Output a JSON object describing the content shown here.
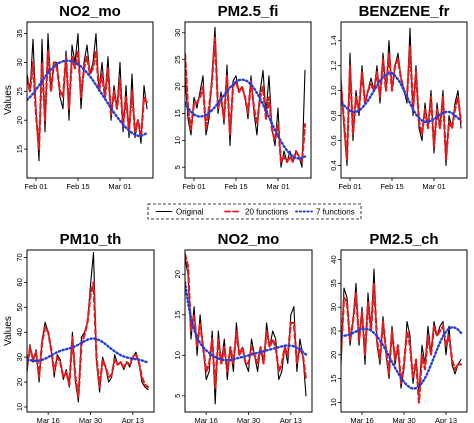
{
  "chart_data": [
    {
      "type": "line",
      "title": "NO2_mo",
      "ylabel": "Values",
      "xlabel": "",
      "ylim": [
        10,
        37
      ],
      "yticks": [
        15,
        20,
        25,
        30,
        35
      ],
      "xlim": [
        0,
        42
      ],
      "xticks": [
        {
          "pos": 3,
          "label": "Feb 01"
        },
        {
          "pos": 17,
          "label": "Feb 15"
        },
        {
          "pos": 31,
          "label": "Mar 01"
        }
      ],
      "series": [
        {
          "name": "Original",
          "style": "solid",
          "color": "#000000",
          "values": [
            28,
            25,
            34,
            22,
            13,
            34,
            18,
            35,
            25,
            30,
            30,
            24,
            22,
            32,
            20,
            33,
            30,
            35,
            22,
            30,
            33,
            28,
            30,
            35,
            25,
            30,
            24,
            31,
            20,
            26,
            22,
            30,
            18,
            26,
            17,
            28,
            17,
            20,
            16,
            26,
            22
          ]
        },
        {
          "name": "20 functions",
          "style": "dashed",
          "color": "#e41a1c",
          "values": [
            27,
            25,
            30,
            21,
            15,
            30,
            20,
            32,
            25,
            30,
            29,
            25,
            24,
            31,
            22,
            31,
            29,
            32,
            24,
            29,
            31,
            28,
            29,
            32,
            25,
            28,
            24,
            29,
            21,
            25,
            22,
            27,
            19,
            24,
            18,
            25,
            18,
            20,
            17,
            24,
            23
          ]
        },
        {
          "name": "7 functions",
          "style": "dotted",
          "color": "#1f3fdb",
          "values": [
            23.5,
            24,
            24.6,
            25.3,
            26,
            26.8,
            27.5,
            28.2,
            28.8,
            29.3,
            29.7,
            30,
            30.2,
            30.3,
            30.3,
            30.2,
            30,
            29.7,
            29.3,
            28.8,
            28.2,
            27.6,
            26.9,
            26.1,
            25.3,
            24.5,
            23.7,
            22.9,
            22.1,
            21.3,
            20.6,
            19.9,
            19.3,
            18.7,
            18.2,
            17.8,
            17.5,
            17.3,
            17.3,
            17.5,
            17.8
          ]
        }
      ]
    },
    {
      "type": "line",
      "title": "PM2.5_fi",
      "ylabel": "",
      "xlabel": "",
      "ylim": [
        3,
        32
      ],
      "yticks": [
        5,
        10,
        15,
        20,
        25,
        30
      ],
      "xlim": [
        0,
        42
      ],
      "xticks": [
        {
          "pos": 3,
          "label": "Feb 01"
        },
        {
          "pos": 17,
          "label": "Feb 15"
        },
        {
          "pos": 31,
          "label": "Mar 01"
        }
      ],
      "series": [
        {
          "name": "Original",
          "style": "solid",
          "color": "#000000",
          "values": [
            22,
            14,
            11,
            18,
            16,
            19,
            22,
            11,
            14,
            22,
            31,
            15,
            19,
            13,
            24,
            9,
            21,
            22,
            19,
            20,
            18,
            14,
            22,
            15,
            11,
            19,
            23,
            15,
            22,
            12,
            9,
            16,
            5,
            8,
            6,
            8,
            6,
            8,
            7,
            5,
            23
          ]
        },
        {
          "name": "20 functions",
          "style": "dashed",
          "color": "#e41a1c",
          "values": [
            26,
            16,
            12,
            17,
            17,
            18,
            20,
            12,
            16,
            21,
            29,
            16,
            18,
            14,
            22,
            11,
            20,
            21,
            19,
            20,
            18,
            15,
            21,
            16,
            13,
            18,
            20,
            14,
            18,
            12,
            10,
            13,
            6,
            7,
            6,
            7,
            6,
            8,
            7,
            6,
            13
          ]
        },
        {
          "name": "7 functions",
          "style": "dotted",
          "color": "#1f3fdb",
          "values": [
            17,
            16,
            15.3,
            14.8,
            14.5,
            14.4,
            14.5,
            14.7,
            15.1,
            15.6,
            16.2,
            16.9,
            17.6,
            18.4,
            19.1,
            19.8,
            20.4,
            20.9,
            21.2,
            21.3,
            21.2,
            20.9,
            20.4,
            19.7,
            18.8,
            17.8,
            16.7,
            15.5,
            14.3,
            13.1,
            11.9,
            10.8,
            9.8,
            8.9,
            8.1,
            7.5,
            7,
            6.7,
            6.6,
            6.7,
            7
          ]
        }
      ]
    },
    {
      "type": "line",
      "title": "BENZENE_fr",
      "ylabel": "",
      "xlabel": "",
      "ylim": [
        0.3,
        1.55
      ],
      "yticks": [
        0.4,
        0.6,
        0.8,
        1.0,
        1.2,
        1.4
      ],
      "xlim": [
        0,
        42
      ],
      "xticks": [
        {
          "pos": 3,
          "label": "Feb 01"
        },
        {
          "pos": 17,
          "label": "Feb 15"
        },
        {
          "pos": 31,
          "label": "Mar 01"
        }
      ],
      "series": [
        {
          "name": "Original",
          "style": "solid",
          "color": "#000000",
          "values": [
            1.1,
            0.7,
            0.4,
            1.3,
            0.6,
            1.0,
            0.8,
            1.2,
            0.9,
            1.0,
            1.1,
            1.0,
            1.2,
            0.9,
            1.3,
            1.0,
            1.4,
            1.0,
            1.2,
            1.3,
            1.1,
            1.0,
            0.9,
            1.5,
            0.8,
            1.2,
            0.7,
            0.6,
            0.9,
            0.7,
            1.0,
            0.5,
            0.9,
            0.7,
            1.0,
            0.4,
            0.8,
            0.7,
            0.9,
            1.0,
            0.7
          ]
        },
        {
          "name": "20 functions",
          "style": "dashed",
          "color": "#e41a1c",
          "values": [
            1.05,
            0.75,
            0.45,
            1.2,
            0.65,
            0.95,
            0.85,
            1.15,
            0.9,
            1.0,
            1.05,
            1.0,
            1.15,
            0.95,
            1.25,
            1.0,
            1.3,
            1.0,
            1.2,
            1.25,
            1.1,
            1.0,
            0.95,
            1.35,
            0.85,
            1.15,
            0.75,
            0.65,
            0.85,
            0.7,
            0.95,
            0.55,
            0.85,
            0.7,
            0.95,
            0.45,
            0.75,
            0.7,
            0.85,
            0.95,
            0.75
          ]
        },
        {
          "name": "7 functions",
          "style": "dotted",
          "color": "#1f3fdb",
          "values": [
            0.9,
            0.88,
            0.86,
            0.84,
            0.83,
            0.83,
            0.84,
            0.86,
            0.89,
            0.92,
            0.96,
            1.0,
            1.04,
            1.08,
            1.11,
            1.13,
            1.14,
            1.14,
            1.12,
            1.09,
            1.05,
            1.0,
            0.95,
            0.9,
            0.85,
            0.81,
            0.78,
            0.76,
            0.75,
            0.75,
            0.76,
            0.77,
            0.79,
            0.81,
            0.82,
            0.83,
            0.83,
            0.82,
            0.8,
            0.78,
            0.76
          ]
        }
      ]
    },
    {
      "type": "line",
      "title": "PM10_th",
      "ylabel": "Values",
      "xlabel": "",
      "ylim": [
        8,
        73
      ],
      "yticks": [
        10,
        20,
        30,
        40,
        50,
        60,
        70
      ],
      "xlim": [
        0,
        42
      ],
      "xticks": [
        {
          "pos": 7,
          "label": "Mar 16"
        },
        {
          "pos": 21,
          "label": "Mar 30"
        },
        {
          "pos": 35,
          "label": "Apr 13"
        }
      ],
      "series": [
        {
          "name": "Original",
          "style": "solid",
          "color": "#000000",
          "values": [
            24,
            35,
            28,
            33,
            20,
            37,
            44,
            40,
            33,
            22,
            31,
            29,
            21,
            25,
            18,
            40,
            20,
            12,
            38,
            40,
            44,
            59,
            72,
            28,
            16,
            30,
            26,
            20,
            22,
            31,
            27,
            28,
            25,
            28,
            26,
            30,
            32,
            28,
            20,
            18,
            17
          ]
        },
        {
          "name": "20 functions",
          "style": "dashed",
          "color": "#e41a1c",
          "values": [
            26,
            34,
            29,
            32,
            22,
            36,
            42,
            40,
            33,
            24,
            30,
            28,
            22,
            24,
            19,
            38,
            22,
            14,
            35,
            39,
            44,
            55,
            60,
            30,
            18,
            29,
            26,
            22,
            23,
            29,
            27,
            28,
            26,
            28,
            27,
            30,
            31,
            28,
            22,
            19,
            18
          ]
        },
        {
          "name": "7 functions",
          "style": "dotted",
          "color": "#1f3fdb",
          "values": [
            29,
            28.8,
            28.6,
            28.5,
            28.6,
            28.9,
            29.4,
            30,
            30.7,
            31.4,
            32,
            32.5,
            32.9,
            33.2,
            33.5,
            33.9,
            34.4,
            35,
            35.7,
            36.4,
            37,
            37.4,
            37.5,
            37.3,
            36.8,
            36.1,
            35.2,
            34.2,
            33.2,
            32.3,
            31.5,
            30.8,
            30.3,
            29.9,
            29.6,
            29.4,
            29.2,
            29,
            28.7,
            28.3,
            27.8
          ]
        }
      ]
    },
    {
      "type": "line",
      "title": "NO2_mo",
      "ylabel": "",
      "xlabel": "",
      "ylim": [
        3,
        23
      ],
      "yticks": [
        5,
        10,
        15,
        20
      ],
      "xlim": [
        0,
        42
      ],
      "xticks": [
        {
          "pos": 7,
          "label": "Mar 16"
        },
        {
          "pos": 21,
          "label": "Mar 30"
        },
        {
          "pos": 35,
          "label": "Apr 13"
        }
      ],
      "series": [
        {
          "name": "Original",
          "style": "solid",
          "color": "#000000",
          "values": [
            22,
            20,
            12,
            16,
            10,
            15,
            11,
            7,
            8,
            13,
            4,
            13,
            9,
            12,
            7,
            11,
            8,
            14,
            10,
            11,
            9,
            8,
            12,
            10,
            8,
            11,
            9,
            14,
            11,
            13,
            12,
            7,
            8,
            11,
            9,
            15,
            16,
            8,
            12,
            10,
            5
          ]
        },
        {
          "name": "20 functions",
          "style": "dashed",
          "color": "#e41a1c",
          "values": [
            22.5,
            21,
            13,
            15,
            11,
            14,
            11,
            8,
            9,
            12,
            6,
            12,
            9,
            11,
            8,
            11,
            9,
            13,
            10,
            11,
            9,
            9,
            11,
            10,
            9,
            11,
            9,
            13,
            11,
            12,
            11,
            8,
            9,
            11,
            10,
            14,
            14,
            9,
            11,
            10,
            7
          ]
        },
        {
          "name": "7 functions",
          "style": "dotted",
          "color": "#1f3fdb",
          "values": [
            19,
            16.5,
            14.6,
            13.2,
            12.2,
            11.5,
            11,
            10.6,
            10.3,
            10,
            9.8,
            9.6,
            9.5,
            9.4,
            9.4,
            9.4,
            9.5,
            9.6,
            9.7,
            9.8,
            9.9,
            10,
            10.1,
            10.2,
            10.3,
            10.4,
            10.5,
            10.6,
            10.7,
            10.8,
            10.9,
            11,
            11.1,
            11.2,
            11.2,
            11.2,
            11.1,
            10.9,
            10.7,
            10.4,
            10.1
          ]
        }
      ]
    },
    {
      "type": "line",
      "title": "PM2.5_ch",
      "ylabel": "",
      "xlabel": "",
      "ylim": [
        8,
        42
      ],
      "yticks": [
        10,
        15,
        20,
        25,
        30,
        35,
        40
      ],
      "xlim": [
        0,
        42
      ],
      "xticks": [
        {
          "pos": 7,
          "label": "Mar 16"
        },
        {
          "pos": 21,
          "label": "Mar 30"
        },
        {
          "pos": 35,
          "label": "Apr 13"
        }
      ],
      "series": [
        {
          "name": "Original",
          "style": "solid",
          "color": "#000000",
          "values": [
            18,
            34,
            32,
            22,
            27,
            35,
            22,
            30,
            18,
            33,
            25,
            38,
            22,
            18,
            28,
            20,
            15,
            26,
            18,
            22,
            13,
            17,
            27,
            24,
            14,
            19,
            12,
            22,
            18,
            26,
            20,
            27,
            24,
            26,
            27,
            20,
            26,
            18,
            16,
            18,
            19
          ]
        },
        {
          "name": "20 functions",
          "style": "dashed",
          "color": "#e41a1c",
          "values": [
            20,
            32,
            31,
            23,
            27,
            33,
            23,
            29,
            20,
            31,
            25,
            35,
            23,
            19,
            27,
            21,
            16,
            25,
            19,
            22,
            14,
            18,
            25,
            22,
            15,
            19,
            10,
            20,
            17,
            24,
            20,
            26,
            24,
            25,
            26,
            22,
            24,
            19,
            17,
            18,
            18
          ]
        },
        {
          "name": "7 functions",
          "style": "dotted",
          "color": "#1f3fdb",
          "values": [
            24,
            24,
            24.1,
            24.3,
            24.6,
            24.9,
            25.2,
            25.4,
            25.5,
            25.4,
            25.1,
            24.6,
            23.9,
            23,
            22,
            20.9,
            19.7,
            18.5,
            17.3,
            16.2,
            15.2,
            14.3,
            13.6,
            13.1,
            12.9,
            13,
            13.4,
            14.1,
            15.1,
            16.4,
            17.9,
            19.5,
            21.1,
            22.6,
            23.9,
            24.9,
            25.5,
            25.8,
            25.7,
            25.3,
            24.6
          ]
        }
      ]
    }
  ],
  "legend": {
    "items": [
      {
        "label": "Original",
        "style": "solid",
        "color": "#000000"
      },
      {
        "label": "20 functions",
        "style": "dashed",
        "color": "#e41a1c"
      },
      {
        "label": "7 functions",
        "style": "dotted",
        "color": "#1f3fdb"
      }
    ]
  }
}
